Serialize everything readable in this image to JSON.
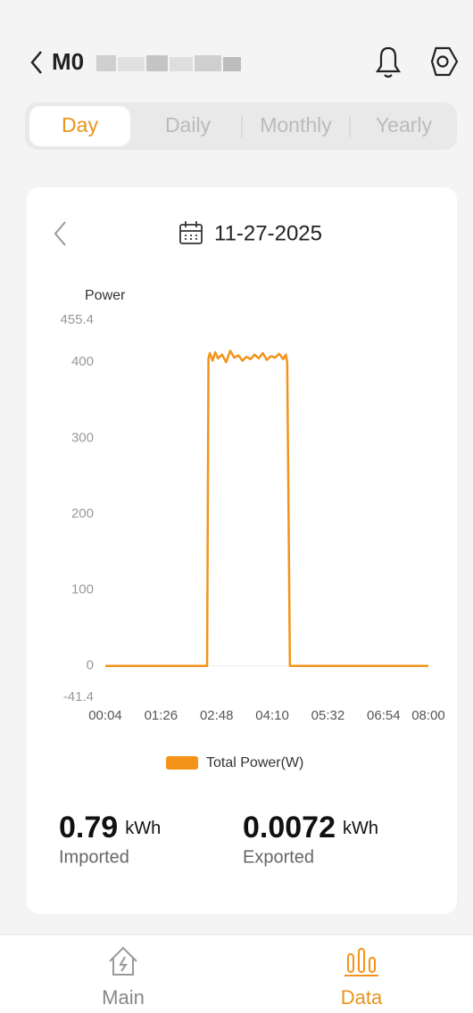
{
  "header": {
    "title": "M0"
  },
  "tabs": [
    {
      "label": "Day",
      "active": true
    },
    {
      "label": "Daily",
      "active": false
    },
    {
      "label": "Monthly",
      "active": false
    },
    {
      "label": "Yearly",
      "active": false
    }
  ],
  "date": "11-27-2025",
  "chart_data": {
    "type": "line",
    "ylabel": "Power",
    "ylim": [
      -41.4,
      455.4
    ],
    "yticks": [
      -41.4,
      0,
      100,
      200,
      300,
      400,
      455.4
    ],
    "xlim": [
      4,
      480
    ],
    "xticks": [
      {
        "value": 4,
        "label": "00:04"
      },
      {
        "value": 86,
        "label": "01:26"
      },
      {
        "value": 168,
        "label": "02:48"
      },
      {
        "value": 250,
        "label": "04:10"
      },
      {
        "value": 332,
        "label": "05:32"
      },
      {
        "value": 414,
        "label": "06:54"
      },
      {
        "value": 480,
        "label": "08:00"
      }
    ],
    "series": [
      {
        "name": "Total Power(W)",
        "color": "#f39319",
        "x": [
          4,
          150,
          154,
          156,
          158,
          162,
          166,
          170,
          176,
          182,
          188,
          194,
          200,
          206,
          212,
          218,
          224,
          230,
          236,
          242,
          248,
          254,
          260,
          266,
          270,
          272,
          276,
          480
        ],
        "values": [
          0,
          0,
          0,
          405,
          412,
          402,
          413,
          405,
          410,
          400,
          415,
          406,
          409,
          402,
          407,
          404,
          410,
          405,
          412,
          403,
          408,
          406,
          411,
          404,
          410,
          400,
          0,
          0
        ]
      }
    ]
  },
  "stats": [
    {
      "value": "0.79",
      "unit": "kWh",
      "label": "Imported"
    },
    {
      "value": "0.0072",
      "unit": "kWh",
      "label": "Exported"
    }
  ],
  "nav": [
    {
      "label": "Main",
      "active": false
    },
    {
      "label": "Data",
      "active": true
    }
  ]
}
